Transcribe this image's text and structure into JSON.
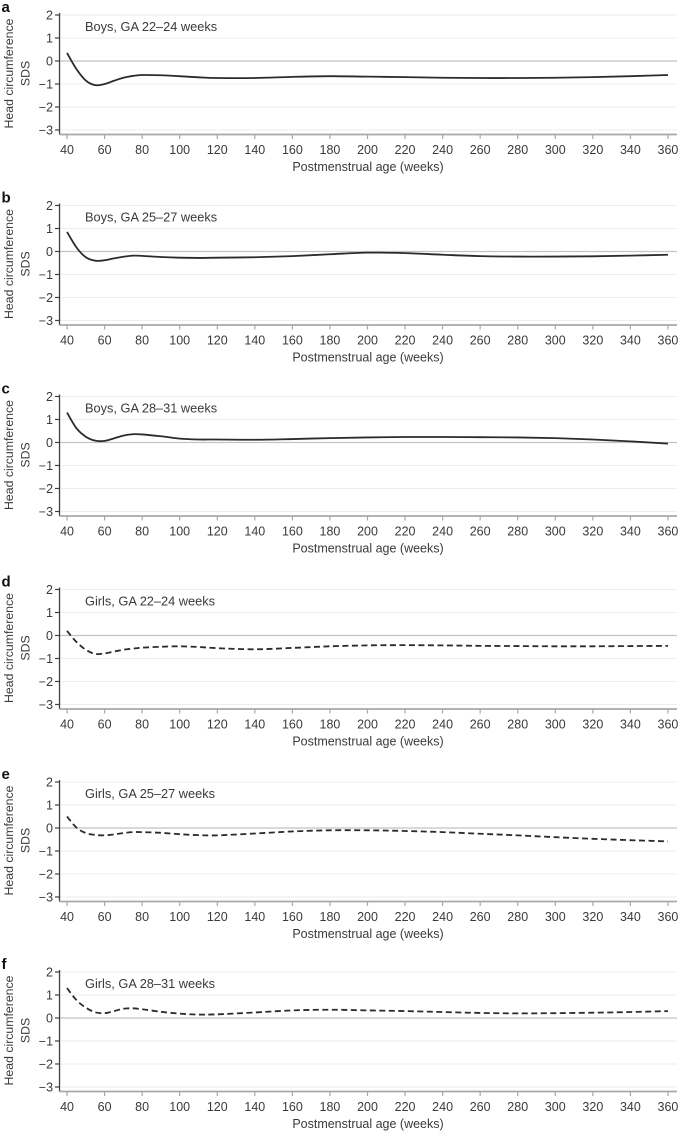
{
  "figure": {
    "background": "#ffffff",
    "ylabel_line1": "Head circumference",
    "ylabel_line2": "SDS",
    "xlabel": "Postmenstrual age (weeks)",
    "x_ticks": [
      40,
      60,
      80,
      100,
      120,
      140,
      160,
      180,
      200,
      220,
      240,
      260,
      280,
      300,
      320,
      340,
      360
    ],
    "y_ticks": [
      {
        "value": 2,
        "label": "2"
      },
      {
        "value": 1,
        "label": "1"
      },
      {
        "value": 0,
        "label": "0"
      },
      {
        "value": -1,
        "label": "−1"
      },
      {
        "value": -2,
        "label": "−2"
      },
      {
        "value": -3,
        "label": "−3"
      }
    ],
    "colors": {
      "curve": "#2b2b2b",
      "grid_line": "#ededed",
      "zero_line": "#c2c2c2",
      "x_axis": "#a8a8a8",
      "y_axis": "#404040",
      "text": "#3a3a3a"
    }
  },
  "chart_data": [
    {
      "type": "line",
      "panel_label": "a",
      "title": "Boys, GA 22–24 weeks",
      "line_style": "solid",
      "xlabel": "Postmenstrual age (weeks)",
      "ylabel": "Head circumference SDS",
      "xlim": [
        40,
        365
      ],
      "ylim": [
        -3,
        2
      ],
      "x": [
        40,
        45,
        50,
        55,
        60,
        65,
        70,
        75,
        80,
        90,
        100,
        110,
        120,
        140,
        160,
        180,
        200,
        220,
        240,
        260,
        280,
        300,
        320,
        340,
        360
      ],
      "y": [
        0.35,
        -0.35,
        -0.85,
        -1.05,
        -1.0,
        -0.86,
        -0.73,
        -0.65,
        -0.61,
        -0.62,
        -0.66,
        -0.71,
        -0.74,
        -0.74,
        -0.69,
        -0.66,
        -0.68,
        -0.7,
        -0.73,
        -0.74,
        -0.74,
        -0.73,
        -0.7,
        -0.66,
        -0.61
      ]
    },
    {
      "type": "line",
      "panel_label": "b",
      "title": "Boys, GA 25–27 weeks",
      "line_style": "solid",
      "xlabel": "Postmenstrual age (weeks)",
      "ylabel": "Head circumference SDS",
      "xlim": [
        40,
        365
      ],
      "ylim": [
        -3,
        2
      ],
      "x": [
        40,
        45,
        50,
        55,
        60,
        65,
        70,
        75,
        80,
        90,
        100,
        110,
        120,
        140,
        160,
        180,
        200,
        220,
        240,
        260,
        280,
        300,
        320,
        340,
        360
      ],
      "y": [
        0.85,
        0.18,
        -0.25,
        -0.4,
        -0.38,
        -0.3,
        -0.23,
        -0.18,
        -0.19,
        -0.24,
        -0.27,
        -0.28,
        -0.27,
        -0.25,
        -0.2,
        -0.12,
        -0.05,
        -0.07,
        -0.14,
        -0.2,
        -0.22,
        -0.22,
        -0.21,
        -0.18,
        -0.14
      ]
    },
    {
      "type": "line",
      "panel_label": "c",
      "title": "Boys, GA 28–31 weeks",
      "line_style": "solid",
      "xlabel": "Postmenstrual age (weeks)",
      "ylabel": "Head circumference SDS",
      "xlim": [
        40,
        365
      ],
      "ylim": [
        -3,
        2
      ],
      "x": [
        40,
        45,
        50,
        55,
        60,
        65,
        70,
        75,
        80,
        90,
        100,
        110,
        120,
        140,
        160,
        180,
        200,
        220,
        240,
        260,
        280,
        300,
        320,
        340,
        360
      ],
      "y": [
        1.3,
        0.62,
        0.25,
        0.08,
        0.07,
        0.18,
        0.3,
        0.36,
        0.35,
        0.27,
        0.17,
        0.13,
        0.13,
        0.12,
        0.15,
        0.19,
        0.22,
        0.24,
        0.24,
        0.23,
        0.22,
        0.19,
        0.13,
        0.05,
        -0.05
      ]
    },
    {
      "type": "line",
      "panel_label": "d",
      "title": "Girls, GA 22–24 weeks",
      "line_style": "dashed",
      "xlabel": "Postmenstrual age (weeks)",
      "ylabel": "Head circumference SDS",
      "xlim": [
        40,
        365
      ],
      "ylim": [
        -3,
        2
      ],
      "x": [
        40,
        45,
        50,
        55,
        60,
        65,
        70,
        75,
        80,
        90,
        100,
        110,
        120,
        140,
        160,
        180,
        200,
        220,
        240,
        260,
        280,
        300,
        320,
        340,
        360
      ],
      "y": [
        0.2,
        -0.28,
        -0.62,
        -0.8,
        -0.78,
        -0.7,
        -0.62,
        -0.57,
        -0.53,
        -0.49,
        -0.47,
        -0.5,
        -0.55,
        -0.6,
        -0.54,
        -0.47,
        -0.43,
        -0.42,
        -0.43,
        -0.45,
        -0.46,
        -0.47,
        -0.47,
        -0.46,
        -0.45
      ]
    },
    {
      "type": "line",
      "panel_label": "e",
      "title": "Girls, GA 25–27 weeks",
      "line_style": "dashed",
      "xlabel": "Postmenstrual age (weeks)",
      "ylabel": "Head circumference SDS",
      "xlim": [
        40,
        365
      ],
      "ylim": [
        -3,
        2
      ],
      "x": [
        40,
        45,
        50,
        55,
        60,
        65,
        70,
        75,
        80,
        90,
        100,
        110,
        120,
        140,
        160,
        180,
        200,
        220,
        240,
        260,
        280,
        300,
        320,
        340,
        360
      ],
      "y": [
        0.5,
        0.02,
        -0.22,
        -0.3,
        -0.32,
        -0.28,
        -0.22,
        -0.18,
        -0.18,
        -0.21,
        -0.27,
        -0.31,
        -0.32,
        -0.24,
        -0.15,
        -0.1,
        -0.1,
        -0.13,
        -0.18,
        -0.25,
        -0.32,
        -0.4,
        -0.47,
        -0.53,
        -0.58
      ]
    },
    {
      "type": "line",
      "panel_label": "f",
      "title": "Girls, GA 28–31 weeks",
      "line_style": "dashed",
      "xlabel": "Postmenstrual age (weeks)",
      "ylabel": "Head circumference SDS",
      "xlim": [
        40,
        365
      ],
      "ylim": [
        -3,
        2
      ],
      "x": [
        40,
        45,
        50,
        55,
        60,
        65,
        70,
        75,
        80,
        90,
        100,
        110,
        120,
        140,
        160,
        180,
        200,
        220,
        240,
        260,
        280,
        300,
        320,
        340,
        360
      ],
      "y": [
        1.3,
        0.78,
        0.45,
        0.25,
        0.21,
        0.3,
        0.4,
        0.42,
        0.38,
        0.27,
        0.19,
        0.15,
        0.16,
        0.24,
        0.33,
        0.36,
        0.33,
        0.3,
        0.26,
        0.22,
        0.2,
        0.21,
        0.23,
        0.26,
        0.3
      ]
    }
  ]
}
